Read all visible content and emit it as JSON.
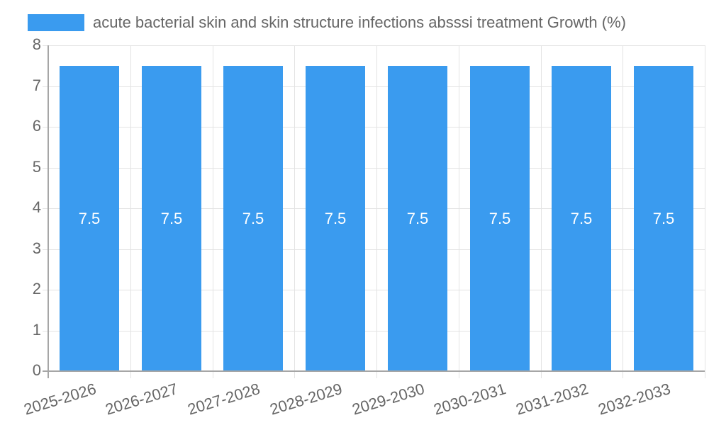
{
  "chart_data": {
    "type": "bar",
    "title": "",
    "categories": [
      "2025-2026",
      "2026-2027",
      "2027-2028",
      "2028-2029",
      "2029-2030",
      "2030-2031",
      "2031-2032",
      "2032-2033"
    ],
    "series": [
      {
        "name": "acute bacterial skin and skin structure infections absssi treatment Growth (%)",
        "values": [
          7.5,
          7.5,
          7.5,
          7.5,
          7.5,
          7.5,
          7.5,
          7.5
        ],
        "color": "#3a9bef"
      }
    ],
    "data_labels": [
      "7.5",
      "7.5",
      "7.5",
      "7.5",
      "7.5",
      "7.5",
      "7.5",
      "7.5"
    ],
    "xlabel": "",
    "ylabel": "",
    "ylim": [
      0,
      8
    ],
    "yticks": [
      "0",
      "1",
      "2",
      "3",
      "4",
      "5",
      "6",
      "7",
      "8"
    ],
    "grid": true,
    "legend_position": "top"
  },
  "legend": {
    "label": "acute bacterial skin and skin structure infections absssi treatment Growth (%)",
    "color": "#3a9bef"
  }
}
